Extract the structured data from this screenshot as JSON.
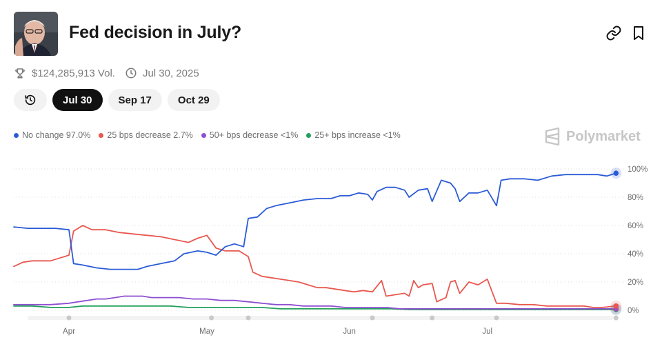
{
  "header": {
    "title": "Fed decision in July?",
    "thumbnail": "chairman-portrait",
    "icons": [
      "link-icon",
      "bookmark-icon"
    ]
  },
  "meta": {
    "volume": "$124,285,913 Vol.",
    "date": "Jul 30, 2025"
  },
  "pills": [
    {
      "label": "Jul 30",
      "active": true
    },
    {
      "label": "Sep 17",
      "active": false
    },
    {
      "label": "Oct 29",
      "active": false
    }
  ],
  "legend": [
    {
      "label": "No change 97.0%",
      "color": "#2a5bd7"
    },
    {
      "label": "25 bps decrease 2.7%",
      "color": "#e8574f"
    },
    {
      "label": "50+ bps decrease <1%",
      "color": "#8e4fd0"
    },
    {
      "label": "25+ bps increase <1%",
      "color": "#22a05b"
    }
  ],
  "brand": "Polymarket",
  "chart_data": {
    "type": "line",
    "x_domain": [
      0,
      132
    ],
    "x_ticks": [
      {
        "x": 12,
        "label": "Apr"
      },
      {
        "x": 42,
        "label": "May"
      },
      {
        "x": 73,
        "label": "Jun"
      },
      {
        "x": 103,
        "label": "Jul"
      }
    ],
    "ylim": [
      0,
      100
    ],
    "y_ticks": [
      "100%",
      "80%",
      "60%",
      "40%",
      "20%",
      "0%"
    ],
    "y_tick_values": [
      100,
      80,
      60,
      40,
      20,
      0
    ],
    "gridlines": true,
    "event_markers_x": [
      12,
      43,
      51,
      78,
      91,
      105,
      131
    ],
    "series": [
      {
        "name": "No change",
        "color": "#2a5bd7",
        "points": [
          [
            0,
            59
          ],
          [
            3,
            58
          ],
          [
            6,
            58
          ],
          [
            9,
            58
          ],
          [
            12,
            57
          ],
          [
            13,
            33
          ],
          [
            15,
            32
          ],
          [
            18,
            30
          ],
          [
            21,
            29
          ],
          [
            24,
            29
          ],
          [
            27,
            29
          ],
          [
            29,
            31
          ],
          [
            32,
            33
          ],
          [
            35,
            35
          ],
          [
            37,
            40
          ],
          [
            40,
            42
          ],
          [
            42,
            41
          ],
          [
            44,
            39
          ],
          [
            46,
            45
          ],
          [
            48,
            47
          ],
          [
            50,
            45
          ],
          [
            51,
            65
          ],
          [
            53,
            66
          ],
          [
            54,
            69
          ],
          [
            55,
            72
          ],
          [
            57,
            74
          ],
          [
            60,
            76
          ],
          [
            63,
            78
          ],
          [
            66,
            79
          ],
          [
            69,
            79
          ],
          [
            71,
            81
          ],
          [
            73,
            81
          ],
          [
            75,
            83
          ],
          [
            77,
            82
          ],
          [
            78,
            78
          ],
          [
            79,
            84
          ],
          [
            81,
            87
          ],
          [
            83,
            87
          ],
          [
            85,
            85
          ],
          [
            86,
            80
          ],
          [
            88,
            85
          ],
          [
            90,
            86
          ],
          [
            91,
            77
          ],
          [
            93,
            92
          ],
          [
            95,
            90
          ],
          [
            96,
            86
          ],
          [
            97,
            77
          ],
          [
            99,
            83
          ],
          [
            101,
            83
          ],
          [
            103,
            85
          ],
          [
            105,
            74
          ],
          [
            106,
            92
          ],
          [
            108,
            93
          ],
          [
            111,
            93
          ],
          [
            114,
            92
          ],
          [
            117,
            95
          ],
          [
            120,
            96
          ],
          [
            124,
            96
          ],
          [
            127,
            96
          ],
          [
            129,
            95
          ],
          [
            131,
            97
          ]
        ]
      },
      {
        "name": "25 bps decrease",
        "color": "#e8574f",
        "points": [
          [
            0,
            31
          ],
          [
            2,
            34
          ],
          [
            4,
            35
          ],
          [
            6,
            35
          ],
          [
            8,
            35
          ],
          [
            10,
            37
          ],
          [
            12,
            39
          ],
          [
            13,
            56
          ],
          [
            15,
            60
          ],
          [
            17,
            57
          ],
          [
            20,
            57
          ],
          [
            23,
            55
          ],
          [
            26,
            54
          ],
          [
            29,
            53
          ],
          [
            32,
            52
          ],
          [
            35,
            50
          ],
          [
            38,
            48
          ],
          [
            40,
            51
          ],
          [
            42,
            53
          ],
          [
            44,
            44
          ],
          [
            46,
            42
          ],
          [
            49,
            42
          ],
          [
            51,
            38
          ],
          [
            52,
            27
          ],
          [
            54,
            24
          ],
          [
            56,
            23
          ],
          [
            58,
            22
          ],
          [
            60,
            21
          ],
          [
            62,
            20
          ],
          [
            64,
            18
          ],
          [
            66,
            16
          ],
          [
            68,
            16
          ],
          [
            70,
            15
          ],
          [
            72,
            14
          ],
          [
            74,
            13
          ],
          [
            76,
            14
          ],
          [
            78,
            13
          ],
          [
            80,
            21
          ],
          [
            81,
            10
          ],
          [
            83,
            11
          ],
          [
            85,
            12
          ],
          [
            86,
            10
          ],
          [
            87,
            21
          ],
          [
            88,
            16
          ],
          [
            89,
            18
          ],
          [
            91,
            19
          ],
          [
            92,
            6
          ],
          [
            94,
            9
          ],
          [
            95,
            20
          ],
          [
            96,
            21
          ],
          [
            97,
            12
          ],
          [
            99,
            20
          ],
          [
            101,
            18
          ],
          [
            103,
            22
          ],
          [
            105,
            5
          ],
          [
            107,
            5
          ],
          [
            110,
            4
          ],
          [
            113,
            4
          ],
          [
            116,
            3
          ],
          [
            118,
            3
          ],
          [
            120,
            3
          ],
          [
            122,
            3
          ],
          [
            124,
            3
          ],
          [
            126,
            2
          ],
          [
            128,
            2
          ],
          [
            131,
            3
          ]
        ]
      },
      {
        "name": "50+ bps decrease",
        "color": "#8e4fd0",
        "points": [
          [
            0,
            4
          ],
          [
            4,
            4
          ],
          [
            8,
            4
          ],
          [
            12,
            5
          ],
          [
            14,
            6
          ],
          [
            16,
            7
          ],
          [
            18,
            8
          ],
          [
            20,
            8
          ],
          [
            22,
            9
          ],
          [
            24,
            10
          ],
          [
            26,
            10
          ],
          [
            28,
            10
          ],
          [
            30,
            9
          ],
          [
            33,
            9
          ],
          [
            36,
            9
          ],
          [
            39,
            8
          ],
          [
            42,
            8
          ],
          [
            45,
            7
          ],
          [
            48,
            7
          ],
          [
            51,
            6
          ],
          [
            54,
            5
          ],
          [
            57,
            4
          ],
          [
            60,
            4
          ],
          [
            63,
            3
          ],
          [
            66,
            3
          ],
          [
            69,
            3
          ],
          [
            72,
            2
          ],
          [
            75,
            2
          ],
          [
            78,
            2
          ],
          [
            81,
            2
          ],
          [
            84,
            1
          ],
          [
            87,
            1
          ],
          [
            90,
            1
          ],
          [
            93,
            1
          ],
          [
            96,
            1
          ],
          [
            99,
            1
          ],
          [
            102,
            1
          ],
          [
            105,
            1
          ],
          [
            108,
            1
          ],
          [
            111,
            1
          ],
          [
            114,
            1
          ],
          [
            117,
            1
          ],
          [
            120,
            1
          ],
          [
            123,
            1
          ],
          [
            126,
            1
          ],
          [
            131,
            1
          ]
        ]
      },
      {
        "name": "25+ bps increase",
        "color": "#22a05b",
        "points": [
          [
            0,
            3
          ],
          [
            4,
            3
          ],
          [
            8,
            2
          ],
          [
            12,
            2
          ],
          [
            15,
            3
          ],
          [
            18,
            3
          ],
          [
            22,
            3
          ],
          [
            26,
            3
          ],
          [
            30,
            3
          ],
          [
            34,
            3
          ],
          [
            38,
            2
          ],
          [
            42,
            2
          ],
          [
            46,
            2
          ],
          [
            50,
            2
          ],
          [
            54,
            2
          ],
          [
            58,
            1
          ],
          [
            62,
            1
          ],
          [
            66,
            1
          ],
          [
            70,
            1
          ],
          [
            74,
            1
          ],
          [
            78,
            1
          ],
          [
            82,
            1
          ],
          [
            86,
            0.5
          ],
          [
            90,
            0.5
          ],
          [
            94,
            0.5
          ],
          [
            98,
            0.5
          ],
          [
            102,
            0.5
          ],
          [
            106,
            0.5
          ],
          [
            110,
            0.5
          ],
          [
            114,
            0.5
          ],
          [
            118,
            0.5
          ],
          [
            122,
            0.5
          ],
          [
            126,
            0.5
          ],
          [
            131,
            0.5
          ]
        ]
      }
    ]
  }
}
